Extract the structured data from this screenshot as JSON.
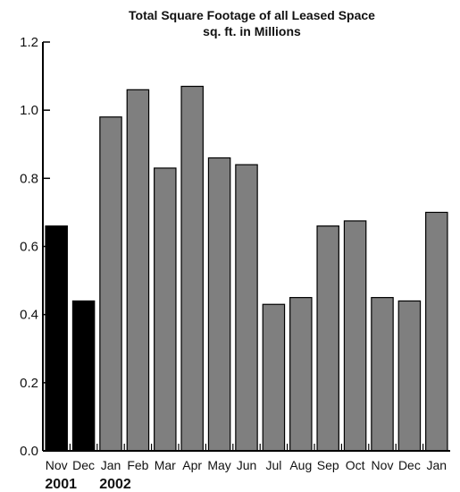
{
  "chart_data": {
    "type": "bar",
    "title": "Total Square Footage of all Leased Space",
    "subtitle": "sq. ft. in Millions",
    "xlabel": "",
    "ylabel": "",
    "ylim": [
      0,
      1.2
    ],
    "yticks": [
      "0.0",
      "0.2",
      "0.4",
      "0.6",
      "0.8",
      "1.0",
      "1.2"
    ],
    "categories": [
      "Nov",
      "Dec",
      "Jan",
      "Feb",
      "Mar",
      "Apr",
      "May",
      "Jun",
      "Jul",
      "Aug",
      "Sep",
      "Oct",
      "Nov",
      "Dec",
      "Jan"
    ],
    "values": [
      0.66,
      0.44,
      0.98,
      1.06,
      0.83,
      1.07,
      0.86,
      0.84,
      0.43,
      0.45,
      0.66,
      0.675,
      0.45,
      0.44,
      0.7
    ],
    "year_labels": [
      {
        "text": "2001",
        "category_index": 0
      },
      {
        "text": "2002",
        "category_index": 2
      }
    ],
    "bar_colors": [
      "#000000",
      "#000000",
      "#7f7f7f",
      "#7f7f7f",
      "#7f7f7f",
      "#7f7f7f",
      "#7f7f7f",
      "#7f7f7f",
      "#7f7f7f",
      "#7f7f7f",
      "#7f7f7f",
      "#7f7f7f",
      "#7f7f7f",
      "#7f7f7f",
      "#7f7f7f"
    ],
    "grid": false,
    "legend": "none"
  }
}
